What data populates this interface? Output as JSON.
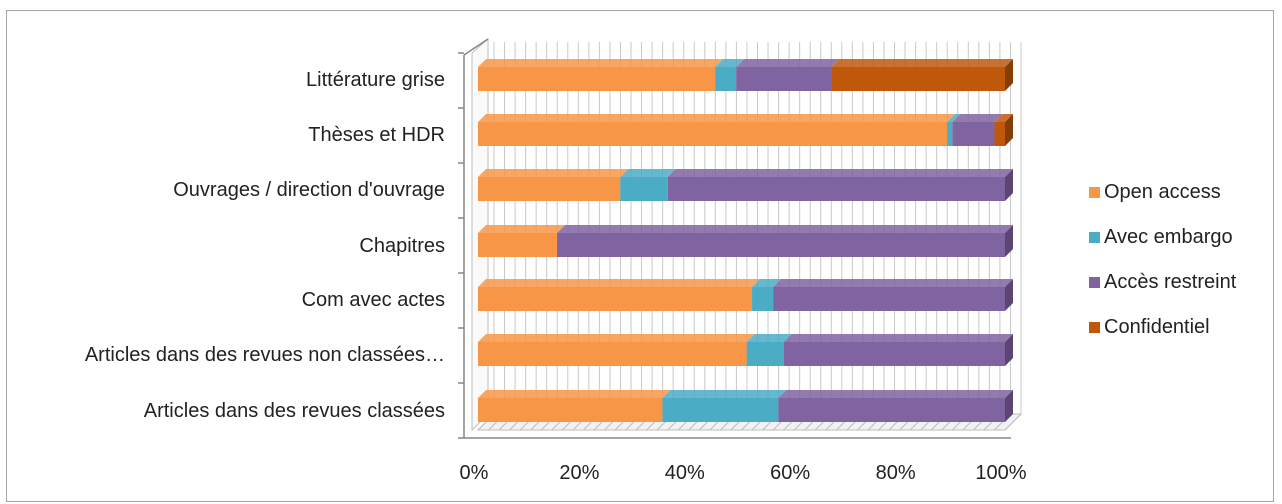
{
  "chart_data": {
    "type": "bar",
    "orientation": "horizontal",
    "stacked": "percent",
    "three_d": true,
    "categories": [
      "Articles dans des revues classées",
      "Articles dans des revues non classées…",
      "Com avec actes",
      "Chapitres",
      "Ouvrages / direction d'ouvrage",
      "Thèses et HDR",
      "Littérature grise"
    ],
    "series": [
      {
        "name": "Open access",
        "color": "#f79646",
        "values": [
          35,
          51,
          52,
          15,
          27,
          89,
          45
        ]
      },
      {
        "name": "Avec embargo",
        "color": "#4bacc6",
        "values": [
          22,
          7,
          4,
          0,
          9,
          1,
          4
        ]
      },
      {
        "name": "Accès restreint",
        "color": "#8064a2",
        "values": [
          43,
          42,
          44,
          85,
          64,
          8,
          18
        ]
      },
      {
        "name": "Confidentiel",
        "color": "#c0580c",
        "values": [
          0,
          0,
          0,
          0,
          0,
          2,
          33
        ]
      }
    ],
    "xticks": [
      "0%",
      "20%",
      "40%",
      "60%",
      "80%",
      "100%"
    ],
    "xlim": [
      0,
      100
    ],
    "grid": true,
    "legend_position": "right"
  }
}
